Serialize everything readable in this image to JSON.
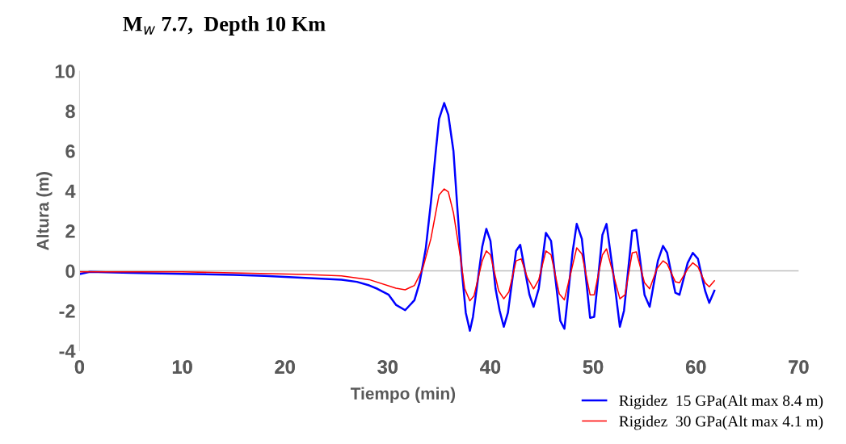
{
  "chart_data": {
    "type": "line",
    "title": "M$_{w}$ 7.7,  Depth 10 Km",
    "xlabel": "Tiempo (min)",
    "ylabel": "Altura (m)",
    "xlim": [
      0,
      70
    ],
    "xticks": [
      0,
      10,
      20,
      30,
      40,
      50,
      60,
      70
    ],
    "ylim": [
      -4,
      10
    ],
    "yticks": [
      -4,
      -2,
      0,
      2,
      4,
      6,
      8,
      10
    ],
    "grid": false,
    "ref_lines": [
      {
        "axis": "y",
        "value": 0,
        "color": "#bfbfbf"
      }
    ],
    "legend": "bottom right",
    "marker": "none",
    "line_style": "solid",
    "series": [
      {
        "name": "Rigidez  15 GPa(Alt max 8.4 m)",
        "color": "#0000ff",
        "x": [
          0.1,
          1,
          5,
          10,
          15,
          18,
          20,
          22,
          25.5,
          27,
          28.2,
          29,
          30.1,
          30.8,
          31.7,
          32.6,
          33.1,
          33.7,
          34.2,
          34.7,
          35.0,
          35.5,
          35.9,
          36.4,
          36.8,
          37.2,
          37.6,
          38.0,
          38.3,
          39.2,
          39.6,
          40.0,
          40.5,
          40.9,
          41.3,
          41.7,
          42.5,
          42.9,
          43.8,
          44.2,
          44.7,
          45.4,
          45.9,
          46.8,
          47.2,
          48.0,
          48.4,
          48.9,
          49.7,
          50.1,
          50.9,
          51.3,
          52.0,
          52.6,
          53.0,
          53.8,
          54.2,
          55.0,
          55.5,
          56.3,
          56.8,
          57.2,
          58.0,
          58.4,
          59.2,
          59.7,
          60.2,
          60.9,
          61.3,
          61.8
        ],
        "values": [
          -0.15,
          -0.05,
          -0.1,
          -0.15,
          -0.2,
          -0.25,
          -0.3,
          -0.35,
          -0.44,
          -0.55,
          -0.73,
          -0.9,
          -1.2,
          -1.7,
          -1.97,
          -1.47,
          -0.6,
          1.1,
          3.4,
          6.1,
          7.6,
          8.4,
          7.8,
          6.0,
          3.0,
          0.1,
          -2.1,
          -3.0,
          -2.3,
          1.2,
          2.1,
          1.5,
          -0.9,
          -2.0,
          -2.8,
          -2.1,
          1.0,
          1.3,
          -1.2,
          -1.8,
          -0.9,
          1.9,
          1.5,
          -2.5,
          -2.9,
          0.95,
          2.35,
          1.6,
          -2.35,
          -2.3,
          1.8,
          2.35,
          -0.3,
          -2.8,
          -2.0,
          2.0,
          2.05,
          -1.2,
          -1.8,
          0.5,
          1.25,
          0.9,
          -1.1,
          -1.2,
          0.4,
          0.9,
          0.6,
          -1.0,
          -1.6,
          -1.0
        ]
      },
      {
        "name": "Rigidez  30 GPa(Alt max 4.1 m)",
        "color": "#ff0000",
        "x": [
          0.1,
          5,
          10,
          17.6,
          22,
          25.5,
          28.2,
          30.8,
          31.7,
          32.6,
          33.4,
          34.2,
          35.0,
          35.5,
          35.9,
          36.4,
          37.1,
          37.5,
          38.0,
          38.4,
          39.2,
          39.6,
          40.0,
          40.8,
          41.3,
          41.8,
          42.5,
          43.0,
          43.6,
          44.2,
          44.7,
          45.4,
          45.9,
          46.7,
          47.2,
          48.4,
          48.9,
          49.7,
          50.1,
          50.9,
          51.3,
          52.6,
          53.1,
          53.8,
          54.2,
          55.0,
          55.5,
          56.2,
          56.8,
          57.2,
          58.0,
          58.4,
          59.2,
          59.7,
          60.2,
          60.9,
          61.3,
          61.8
        ],
        "values": [
          -0.05,
          -0.05,
          -0.05,
          -0.13,
          -0.18,
          -0.25,
          -0.44,
          -0.87,
          -0.95,
          -0.73,
          0.1,
          1.6,
          3.8,
          4.1,
          3.95,
          2.9,
          0.6,
          -0.9,
          -1.5,
          -1.25,
          0.5,
          1.0,
          0.8,
          -1.0,
          -1.4,
          -1.05,
          0.5,
          0.6,
          -0.35,
          -0.9,
          -0.45,
          1.0,
          0.8,
          -1.15,
          -1.45,
          1.15,
          0.85,
          -1.2,
          -1.2,
          0.8,
          1.1,
          -1.4,
          -1.2,
          0.9,
          0.95,
          -0.6,
          -0.9,
          0.1,
          0.5,
          0.35,
          -0.55,
          -0.6,
          0.1,
          0.4,
          0.2,
          -0.6,
          -0.8,
          -0.5
        ]
      }
    ]
  }
}
